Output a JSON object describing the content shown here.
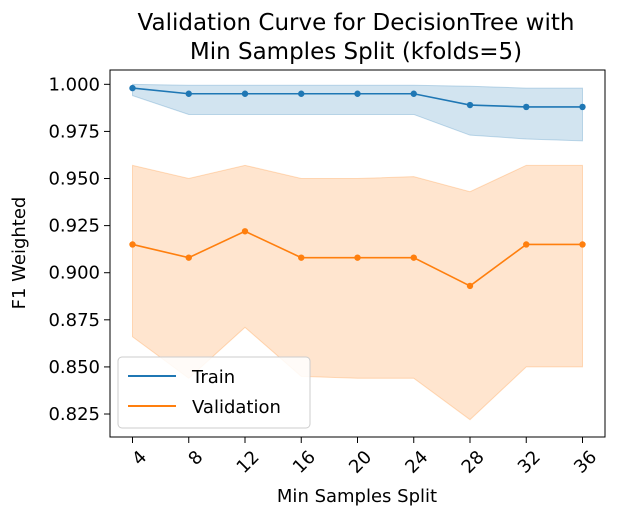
{
  "chart_data": {
    "type": "line",
    "title_line1": "Validation Curve for DecisionTree with",
    "title_line2": "Min Samples Split (kfolds=5)",
    "xlabel": "Min Samples Split",
    "ylabel": "F1 Weighted",
    "x": [
      4,
      8,
      12,
      16,
      20,
      24,
      28,
      32,
      36
    ],
    "x_tick_labels": [
      "4",
      "8",
      "12",
      "16",
      "20",
      "24",
      "28",
      "32",
      "36"
    ],
    "y_ticks": [
      0.825,
      0.85,
      0.875,
      0.9,
      0.925,
      0.95,
      0.975,
      1.0
    ],
    "y_tick_labels": [
      "0.825",
      "0.850",
      "0.875",
      "0.900",
      "0.925",
      "0.950",
      "0.975",
      "1.000"
    ],
    "ylim": [
      0.8128,
      1.0076
    ],
    "legend_position": "lower-left",
    "series": [
      {
        "name": "Train",
        "color": "#1f77b4",
        "values": [
          0.998,
          0.995,
          0.995,
          0.995,
          0.995,
          0.995,
          0.989,
          0.988,
          0.988
        ],
        "lower": [
          0.994,
          0.984,
          0.984,
          0.984,
          0.984,
          0.984,
          0.973,
          0.971,
          0.97
        ],
        "upper": [
          1.0,
          0.9995,
          0.9995,
          0.9995,
          0.9995,
          0.9995,
          0.999,
          0.998,
          0.998
        ]
      },
      {
        "name": "Validation",
        "color": "#ff7f0e",
        "values": [
          0.915,
          0.908,
          0.922,
          0.908,
          0.908,
          0.908,
          0.893,
          0.915,
          0.915
        ],
        "lower": [
          0.866,
          0.844,
          0.871,
          0.845,
          0.844,
          0.844,
          0.822,
          0.85,
          0.85
        ],
        "upper": [
          0.957,
          0.95,
          0.957,
          0.95,
          0.95,
          0.951,
          0.943,
          0.957,
          0.957
        ]
      }
    ]
  }
}
